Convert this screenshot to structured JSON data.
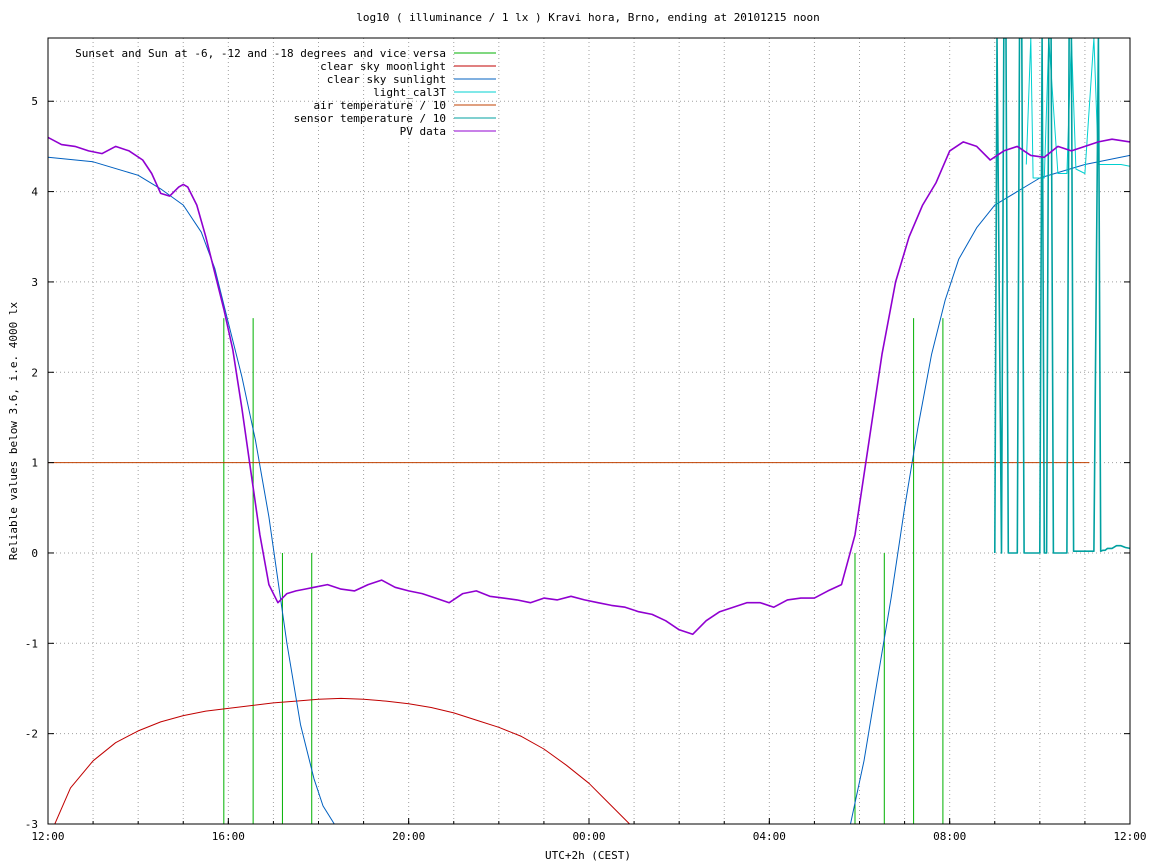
{
  "chart_data": {
    "type": "line",
    "title": "log10 ( illuminance / 1 lx ) Kravi hora, Brno, ending at 20101215 noon",
    "xlabel": "UTC+2h (CEST)",
    "ylabel": "Reliable values below 3.6, i.e. 4000 lx",
    "xlim": [
      0,
      24
    ],
    "ylim": [
      -3,
      5.7
    ],
    "x_ticks": [
      {
        "v": 0,
        "label": "12:00"
      },
      {
        "v": 4,
        "label": "16:00"
      },
      {
        "v": 8,
        "label": "20:00"
      },
      {
        "v": 12,
        "label": "00:00"
      },
      {
        "v": 16,
        "label": "04:00"
      },
      {
        "v": 20,
        "label": "08:00"
      },
      {
        "v": 24,
        "label": "12:00"
      }
    ],
    "y_ticks": [
      {
        "v": -3,
        "label": "-3"
      },
      {
        "v": -2,
        "label": "-2"
      },
      {
        "v": -1,
        "label": "-1"
      },
      {
        "v": 0,
        "label": "0"
      },
      {
        "v": 1,
        "label": "1"
      },
      {
        "v": 2,
        "label": "2"
      },
      {
        "v": 3,
        "label": "3"
      },
      {
        "v": 4,
        "label": "4"
      },
      {
        "v": 5,
        "label": "5"
      }
    ],
    "grid": true,
    "legend_position": "top-left",
    "series": [
      {
        "name": "Sunset and Sun at -6, -12 and -18 degrees and vice versa",
        "color": "#00b000",
        "kind": "impulses",
        "x": [
          3.9,
          4.55,
          5.2,
          5.85,
          17.9,
          18.55,
          19.2,
          19.85
        ],
        "y": [
          2.6,
          2.6,
          0.0,
          0.0,
          0.0,
          0.0,
          2.6,
          2.6
        ]
      },
      {
        "name": "clear sky moonlight",
        "color": "#c00000",
        "x": [
          0.15,
          0.5,
          1.0,
          1.5,
          2.0,
          2.5,
          3.0,
          3.5,
          4.0,
          4.5,
          5.0,
          5.5,
          6.0,
          6.5,
          7.0,
          7.5,
          8.0,
          8.5,
          9.0,
          9.5,
          10.0,
          10.5,
          11.0,
          11.5,
          12.0,
          12.4,
          12.9
        ],
        "y": [
          -3.0,
          -2.6,
          -2.3,
          -2.1,
          -1.97,
          -1.87,
          -1.8,
          -1.75,
          -1.72,
          -1.69,
          -1.66,
          -1.64,
          -1.62,
          -1.61,
          -1.62,
          -1.64,
          -1.67,
          -1.71,
          -1.77,
          -1.85,
          -1.93,
          -2.03,
          -2.17,
          -2.35,
          -2.55,
          -2.75,
          -3.0
        ]
      },
      {
        "name": "clear sky sunlight",
        "color": "#0060c0",
        "x": [
          0,
          1,
          2,
          2.5,
          3,
          3.4,
          3.7,
          4.0,
          4.3,
          4.6,
          4.9,
          5.1,
          5.3,
          5.6,
          5.9,
          6.1,
          6.35,
          17.8,
          18.1,
          18.4,
          18.7,
          19.0,
          19.3,
          19.6,
          19.9,
          20.2,
          20.6,
          21.0,
          22.0,
          23.0,
          24.0
        ],
        "y": [
          4.38,
          4.33,
          4.18,
          4.03,
          3.85,
          3.55,
          3.15,
          2.55,
          1.95,
          1.25,
          0.4,
          -0.3,
          -1.0,
          -1.9,
          -2.5,
          -2.8,
          -3.0,
          -3.0,
          -2.3,
          -1.4,
          -0.5,
          0.5,
          1.4,
          2.2,
          2.8,
          3.25,
          3.6,
          3.85,
          4.15,
          4.3,
          4.4
        ]
      },
      {
        "name": "light_cal3T",
        "color": "#00d0d0",
        "x": [
          21.7,
          21.8,
          21.85,
          22.1,
          22.2,
          22.4,
          22.6,
          22.7,
          22.8,
          23.0,
          23.2,
          23.3,
          23.5,
          23.8,
          24.0
        ],
        "y": [
          4.3,
          5.7,
          4.15,
          4.15,
          5.7,
          4.2,
          4.2,
          5.7,
          4.25,
          4.2,
          5.7,
          4.3,
          4.3,
          4.3,
          4.28
        ]
      },
      {
        "name": "air temperature / 10",
        "color": "#c04000",
        "x": [
          0,
          23.1
        ],
        "y": [
          1.0,
          1.0
        ]
      },
      {
        "name": "sensor temperature / 10",
        "color": "#00a0a0",
        "x": [
          21.0,
          21.05,
          21.15,
          21.2,
          21.25,
          21.3,
          21.35,
          21.4,
          21.45,
          21.5,
          21.55,
          21.6,
          21.65,
          21.7,
          22.0,
          22.05,
          22.1,
          22.15,
          22.2,
          22.25,
          22.3,
          22.35,
          22.4,
          22.45,
          22.5,
          22.6,
          22.65,
          22.7,
          22.75,
          22.8,
          22.85,
          22.9,
          23.0,
          23.2,
          23.3,
          23.35,
          23.4,
          23.45,
          23.5,
          23.6,
          23.7,
          23.8,
          23.9,
          24.0
        ],
        "y": [
          0.0,
          5.7,
          0.0,
          5.7,
          5.7,
          0.0,
          0.0,
          0.0,
          0.0,
          0.0,
          5.7,
          5.7,
          0.0,
          0.0,
          0.0,
          5.7,
          0.0,
          0.0,
          5.7,
          5.7,
          0.0,
          0.0,
          0.0,
          0.0,
          0.0,
          0.0,
          5.7,
          5.7,
          0.02,
          0.02,
          0.02,
          0.02,
          0.02,
          0.02,
          5.7,
          0.02,
          0.03,
          0.03,
          0.05,
          0.05,
          0.08,
          0.08,
          0.06,
          0.05
        ]
      },
      {
        "name": "PV data",
        "color": "#9000d0",
        "x": [
          0,
          0.3,
          0.6,
          0.9,
          1.2,
          1.5,
          1.8,
          2.1,
          2.3,
          2.5,
          2.7,
          2.9,
          3.0,
          3.1,
          3.3,
          3.5,
          3.7,
          3.9,
          4.1,
          4.3,
          4.5,
          4.7,
          4.9,
          5.1,
          5.3,
          5.5,
          5.7,
          5.9,
          6.2,
          6.5,
          6.8,
          7.1,
          7.4,
          7.7,
          8.0,
          8.3,
          8.6,
          8.9,
          9.2,
          9.5,
          9.8,
          10.1,
          10.4,
          10.7,
          11.0,
          11.3,
          11.6,
          11.9,
          12.2,
          12.5,
          12.8,
          13.1,
          13.4,
          13.7,
          14.0,
          14.3,
          14.6,
          14.9,
          15.2,
          15.5,
          15.8,
          16.1,
          16.4,
          16.7,
          17.0,
          17.3,
          17.6,
          17.9,
          18.2,
          18.5,
          18.8,
          19.1,
          19.4,
          19.7,
          20.0,
          20.3,
          20.6,
          20.9,
          21.2,
          21.5,
          21.8,
          22.1,
          22.4,
          22.7,
          23.0,
          23.3,
          23.6,
          24.0
        ],
        "y": [
          4.6,
          4.52,
          4.5,
          4.45,
          4.42,
          4.5,
          4.45,
          4.35,
          4.2,
          3.98,
          3.95,
          4.05,
          4.08,
          4.05,
          3.85,
          3.5,
          3.1,
          2.7,
          2.25,
          1.6,
          0.9,
          0.2,
          -0.35,
          -0.55,
          -0.45,
          -0.42,
          -0.4,
          -0.38,
          -0.35,
          -0.4,
          -0.42,
          -0.35,
          -0.3,
          -0.38,
          -0.42,
          -0.45,
          -0.5,
          -0.55,
          -0.45,
          -0.42,
          -0.48,
          -0.5,
          -0.52,
          -0.55,
          -0.5,
          -0.52,
          -0.48,
          -0.52,
          -0.55,
          -0.58,
          -0.6,
          -0.65,
          -0.68,
          -0.75,
          -0.85,
          -0.9,
          -0.75,
          -0.65,
          -0.6,
          -0.55,
          -0.55,
          -0.6,
          -0.52,
          -0.5,
          -0.5,
          -0.42,
          -0.35,
          0.2,
          1.2,
          2.2,
          3.0,
          3.5,
          3.85,
          4.1,
          4.45,
          4.55,
          4.5,
          4.35,
          4.45,
          4.5,
          4.4,
          4.38,
          4.5,
          4.45,
          4.5,
          4.55,
          4.58,
          4.55
        ]
      }
    ]
  }
}
